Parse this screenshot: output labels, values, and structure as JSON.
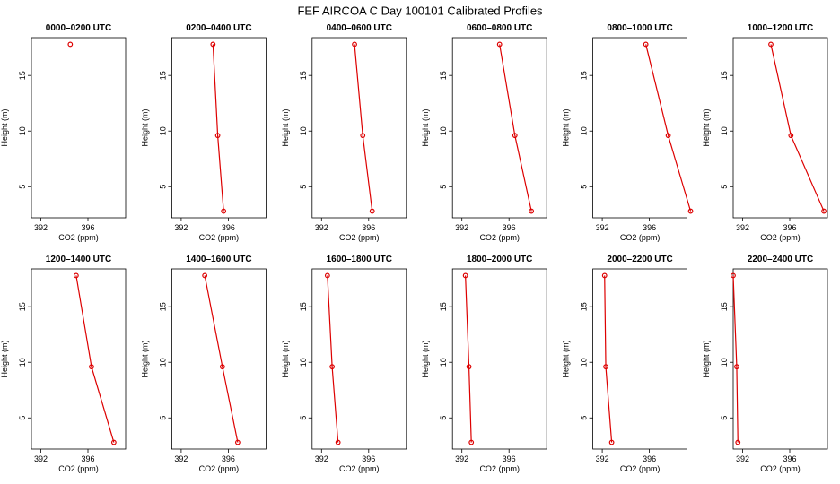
{
  "title": "FEF AIRCOA C  Day 100101  Calibrated Profiles",
  "chart_data": [
    {
      "type": "line",
      "title": "0000–0200 UTC",
      "xlabel": "CO2 (ppm)",
      "ylabel": "Height (m)",
      "x": [
        null,
        null,
        394.5
      ],
      "values": [
        2.8,
        9.6,
        17.8
      ],
      "color": "#dd0000",
      "xlim": [
        391.2,
        399.2
      ],
      "xticks": [
        392,
        396
      ],
      "ylim": [
        2.2,
        18.4
      ],
      "yticks": [
        5,
        10,
        15
      ]
    },
    {
      "type": "line",
      "title": "0200–0400 UTC",
      "xlabel": "CO2 (ppm)",
      "ylabel": "Height (m)",
      "x": [
        395.6,
        395.1,
        394.7
      ],
      "values": [
        2.8,
        9.6,
        17.8
      ],
      "color": "#dd0000",
      "xlim": [
        391.2,
        399.2
      ],
      "xticks": [
        392,
        396
      ],
      "ylim": [
        2.2,
        18.4
      ],
      "yticks": [
        5,
        10,
        15
      ]
    },
    {
      "type": "line",
      "title": "0400–0600 UTC",
      "xlabel": "CO2 (ppm)",
      "ylabel": "Height (m)",
      "x": [
        396.3,
        395.5,
        394.8
      ],
      "values": [
        2.8,
        9.6,
        17.8
      ],
      "color": "#dd0000",
      "xlim": [
        391.2,
        399.2
      ],
      "xticks": [
        392,
        396
      ],
      "ylim": [
        2.2,
        18.4
      ],
      "yticks": [
        5,
        10,
        15
      ]
    },
    {
      "type": "line",
      "title": "0600–0800 UTC",
      "xlabel": "CO2 (ppm)",
      "ylabel": "Height (m)",
      "x": [
        397.9,
        396.5,
        395.2
      ],
      "values": [
        2.8,
        9.6,
        17.8
      ],
      "color": "#dd0000",
      "xlim": [
        391.2,
        399.2
      ],
      "xticks": [
        392,
        396
      ],
      "ylim": [
        2.2,
        18.4
      ],
      "yticks": [
        5,
        10,
        15
      ]
    },
    {
      "type": "line",
      "title": "0800–1000 UTC",
      "xlabel": "CO2 (ppm)",
      "ylabel": "Height (m)",
      "x": [
        399.5,
        397.6,
        395.7
      ],
      "values": [
        2.8,
        9.6,
        17.8
      ],
      "color": "#dd0000",
      "xlim": [
        391.2,
        399.2
      ],
      "xticks": [
        392,
        396
      ],
      "ylim": [
        2.2,
        18.4
      ],
      "yticks": [
        5,
        10,
        15
      ]
    },
    {
      "type": "line",
      "title": "1000–1200 UTC",
      "xlabel": "CO2 (ppm)",
      "ylabel": "Height (m)",
      "x": [
        398.9,
        396.1,
        394.4
      ],
      "values": [
        2.8,
        9.6,
        17.8
      ],
      "color": "#dd0000",
      "xlim": [
        391.2,
        399.2
      ],
      "xticks": [
        392,
        396
      ],
      "ylim": [
        2.2,
        18.4
      ],
      "yticks": [
        5,
        10,
        15
      ]
    },
    {
      "type": "line",
      "title": "1200–1400 UTC",
      "xlabel": "CO2 (ppm)",
      "ylabel": "Height (m)",
      "x": [
        398.2,
        396.3,
        395.0
      ],
      "values": [
        2.8,
        9.6,
        17.8
      ],
      "color": "#dd0000",
      "xlim": [
        391.2,
        399.2
      ],
      "xticks": [
        392,
        396
      ],
      "ylim": [
        2.2,
        18.4
      ],
      "yticks": [
        5,
        10,
        15
      ]
    },
    {
      "type": "line",
      "title": "1400–1600 UTC",
      "xlabel": "CO2 (ppm)",
      "ylabel": "Height (m)",
      "x": [
        396.8,
        395.5,
        394.0
      ],
      "values": [
        2.8,
        9.6,
        17.8
      ],
      "color": "#dd0000",
      "xlim": [
        391.2,
        399.2
      ],
      "xticks": [
        392,
        396
      ],
      "ylim": [
        2.2,
        18.4
      ],
      "yticks": [
        5,
        10,
        15
      ]
    },
    {
      "type": "line",
      "title": "1600–1800 UTC",
      "xlabel": "CO2 (ppm)",
      "ylabel": "Height (m)",
      "x": [
        393.4,
        392.9,
        392.5
      ],
      "values": [
        2.8,
        9.6,
        17.8
      ],
      "color": "#dd0000",
      "xlim": [
        391.2,
        399.2
      ],
      "xticks": [
        392,
        396
      ],
      "ylim": [
        2.2,
        18.4
      ],
      "yticks": [
        5,
        10,
        15
      ]
    },
    {
      "type": "line",
      "title": "1800–2000 UTC",
      "xlabel": "CO2 (ppm)",
      "ylabel": "Height (m)",
      "x": [
        392.8,
        392.6,
        392.3
      ],
      "values": [
        2.8,
        9.6,
        17.8
      ],
      "color": "#dd0000",
      "xlim": [
        391.2,
        399.2
      ],
      "xticks": [
        392,
        396
      ],
      "ylim": [
        2.2,
        18.4
      ],
      "yticks": [
        5,
        10,
        15
      ]
    },
    {
      "type": "line",
      "title": "2000–2200 UTC",
      "xlabel": "CO2 (ppm)",
      "ylabel": "Height (m)",
      "x": [
        392.8,
        392.3,
        392.2
      ],
      "values": [
        2.8,
        9.6,
        17.8
      ],
      "color": "#dd0000",
      "xlim": [
        391.2,
        399.2
      ],
      "xticks": [
        392,
        396
      ],
      "ylim": [
        2.2,
        18.4
      ],
      "yticks": [
        5,
        10,
        15
      ]
    },
    {
      "type": "line",
      "title": "2200–2400 UTC",
      "xlabel": "CO2 (ppm)",
      "ylabel": "Height (m)",
      "x": [
        391.6,
        391.5,
        391.2
      ],
      "values": [
        2.8,
        9.6,
        17.8
      ],
      "color": "#dd0000",
      "xlim": [
        391.2,
        399.2
      ],
      "xticks": [
        392,
        396
      ],
      "ylim": [
        2.2,
        18.4
      ],
      "yticks": [
        5,
        10,
        15
      ]
    }
  ]
}
